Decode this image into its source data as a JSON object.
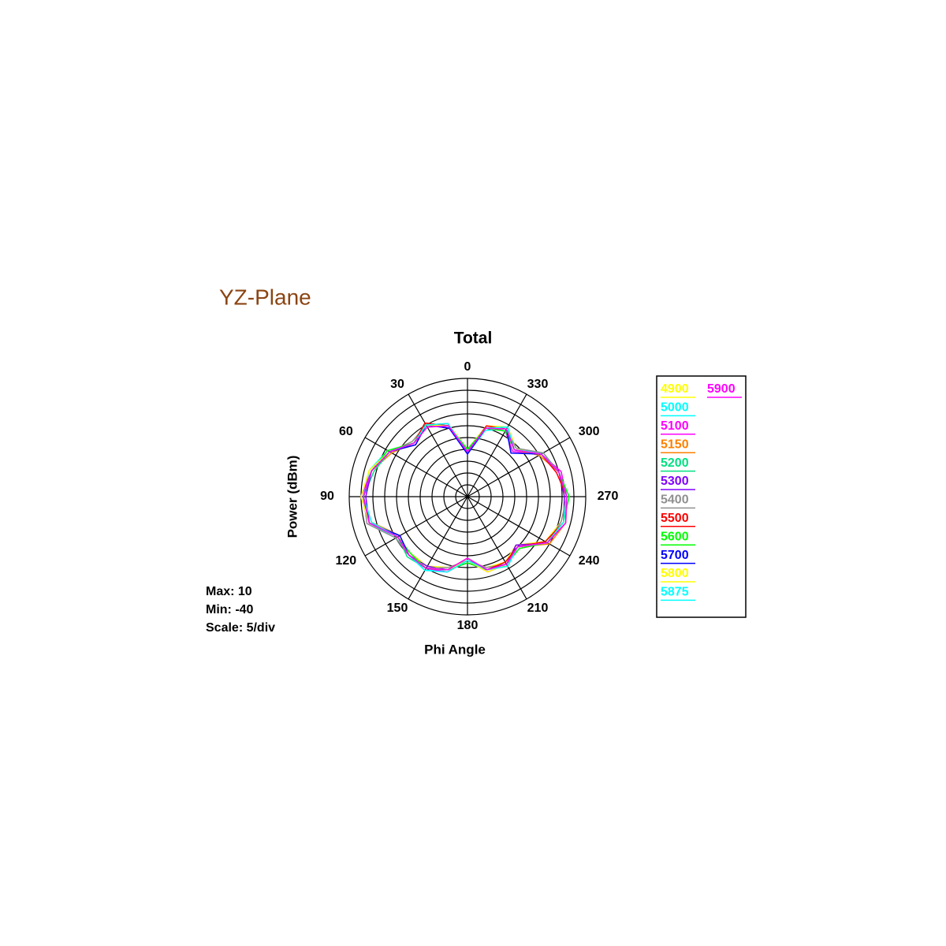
{
  "page_title": "YZ-Plane",
  "chart_data": {
    "type": "polar",
    "title": "Total",
    "x_label": "Phi Angle",
    "y_label": "Power  (dBm)",
    "stats": [
      "Max: 10",
      "Min: -40",
      "Scale: 5/div"
    ],
    "rlim": [
      -40,
      10
    ],
    "rticks": [
      -35,
      -30,
      -25,
      -20,
      -15,
      -10,
      -5,
      0,
      5,
      10
    ],
    "thetaticks": [
      0,
      30,
      60,
      90,
      120,
      150,
      180,
      210,
      240,
      270,
      300,
      330
    ],
    "direction": "counterclockwise",
    "zero": "top",
    "theta": [
      0,
      15,
      30,
      45,
      60,
      75,
      90,
      105,
      120,
      135,
      150,
      165,
      180,
      195,
      210,
      225,
      240,
      255,
      270,
      285,
      300,
      315,
      330,
      345
    ],
    "series": [
      {
        "name": "4900",
        "color": "#ffff00",
        "values": [
          -20,
          -8,
          -5,
          -7,
          -2,
          2,
          4,
          3,
          -6,
          -6,
          -6,
          -9,
          -13,
          -9,
          -8,
          -11,
          -2,
          1,
          2,
          0,
          -4,
          -11,
          -6,
          -9
        ]
      },
      {
        "name": "5000",
        "color": "#00ffff",
        "values": [
          -22,
          -9,
          -4,
          -8,
          -1,
          3,
          4,
          3,
          -5,
          -5,
          -4,
          -8,
          -12,
          -8,
          -7,
          -10,
          -1,
          2,
          3,
          0,
          -3,
          -12,
          -7,
          -11
        ]
      },
      {
        "name": "5100",
        "color": "#ff00ff",
        "values": [
          -21,
          -10,
          -5,
          -9,
          -2,
          2,
          5,
          3,
          -6,
          -5,
          -5,
          -7,
          -13,
          -7,
          -7,
          -9,
          -1,
          2,
          2,
          1,
          -4,
          -13,
          -8,
          -10
        ]
      },
      {
        "name": "5150",
        "color": "#ff8000",
        "values": [
          -21,
          -9,
          -6,
          -8,
          -3,
          2,
          4,
          2,
          -7,
          -5,
          -5,
          -8,
          -14,
          -8,
          -6,
          -10,
          0,
          3,
          2,
          0,
          -5,
          -12,
          -7,
          -10
        ]
      },
      {
        "name": "5200",
        "color": "#00e080",
        "values": [
          -20,
          -9,
          -5,
          -8,
          -2,
          1,
          4,
          3,
          -6,
          -4,
          -5,
          -8,
          -13,
          -8,
          -7,
          -10,
          -1,
          2,
          2,
          0,
          -4,
          -12,
          -6,
          -10
        ]
      },
      {
        "name": "5300",
        "color": "#8000ff",
        "values": [
          -22,
          -8,
          -5,
          -8,
          -2,
          2,
          3,
          3,
          -6,
          -5,
          -6,
          -8,
          -12,
          -8,
          -7,
          -11,
          -1,
          2,
          1,
          0,
          -4,
          -12,
          -7,
          -10
        ]
      },
      {
        "name": "5400",
        "color": "#909090",
        "values": [
          -21,
          -9,
          -5,
          -7,
          -2,
          2,
          4,
          4,
          -5,
          -5,
          -5,
          -9,
          -13,
          -9,
          -7,
          -10,
          -1,
          1,
          2,
          0,
          -3,
          -11,
          -7,
          -10
        ]
      },
      {
        "name": "5500",
        "color": "#ff0000",
        "values": [
          -21,
          -9,
          -4,
          -8,
          -2,
          2,
          4,
          3,
          -6,
          -5,
          -5,
          -8,
          -13,
          -8,
          -8,
          -10,
          -2,
          2,
          2,
          -1,
          -4,
          -12,
          -7,
          -9
        ]
      },
      {
        "name": "5600",
        "color": "#00ff00",
        "values": [
          -20,
          -9,
          -5,
          -8,
          -1,
          2,
          4,
          3,
          -6,
          -6,
          -5,
          -8,
          -12,
          -8,
          -7,
          -9,
          -1,
          2,
          3,
          0,
          -4,
          -12,
          -8,
          -10
        ]
      },
      {
        "name": "5700",
        "color": "#0000ff",
        "values": [
          -22,
          -10,
          -5,
          -9,
          -2,
          2,
          4,
          3,
          -7,
          -5,
          -5,
          -8,
          -13,
          -8,
          -7,
          -10,
          -1,
          2,
          2,
          0,
          -4,
          -14,
          -7,
          -10
        ]
      },
      {
        "name": "5800",
        "color": "#ffff00",
        "values": [
          -21,
          -9,
          -5,
          -8,
          -2,
          3,
          5,
          3,
          -6,
          -5,
          -5,
          -8,
          -13,
          -7,
          -7,
          -10,
          -1,
          2,
          2,
          0,
          -4,
          -12,
          -7,
          -10
        ]
      },
      {
        "name": "5875",
        "color": "#00ffff",
        "values": [
          -21,
          -8,
          -5,
          -8,
          -2,
          2,
          4,
          2,
          -6,
          -5,
          -4,
          -7,
          -13,
          -8,
          -6,
          -10,
          -1,
          2,
          2,
          0,
          -4,
          -12,
          -6,
          -10
        ]
      },
      {
        "name": "5900",
        "color": "#ff00ff",
        "values": [
          -21,
          -9,
          -6,
          -8,
          -2,
          2,
          4,
          3,
          -6,
          -5,
          -5,
          -8,
          -14,
          -8,
          -7,
          -10,
          -1,
          3,
          2,
          0,
          -4,
          -12,
          -7,
          -10
        ]
      }
    ]
  }
}
